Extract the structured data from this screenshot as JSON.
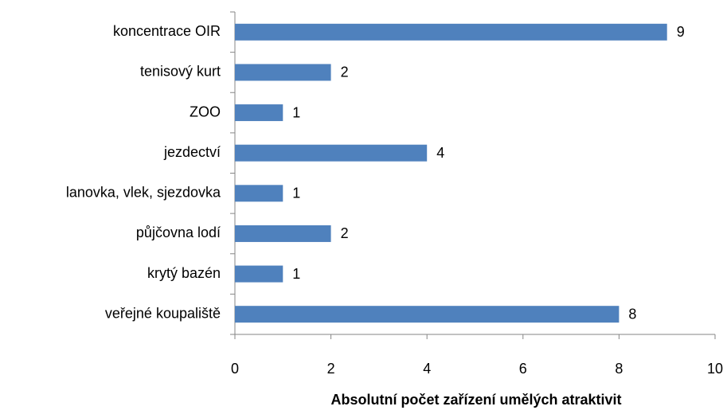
{
  "chart_data": {
    "type": "bar",
    "orientation": "horizontal",
    "x_label": "Absolutní počet zařízení umělých atraktivit",
    "categories": [
      "koncentrace OIR",
      "tenisový kurt",
      "ZOO",
      "jezdectví",
      "lanovka, vlek, sjezdovka",
      "půjčovna lodí",
      "krytý bazén",
      "veřejné koupaliště"
    ],
    "values": [
      9,
      2,
      1,
      4,
      1,
      2,
      1,
      8
    ],
    "color": "#4f81bd",
    "xlim": [
      0,
      10
    ],
    "xticks": [
      0,
      2,
      4,
      6,
      8,
      10
    ],
    "grid": false
  }
}
